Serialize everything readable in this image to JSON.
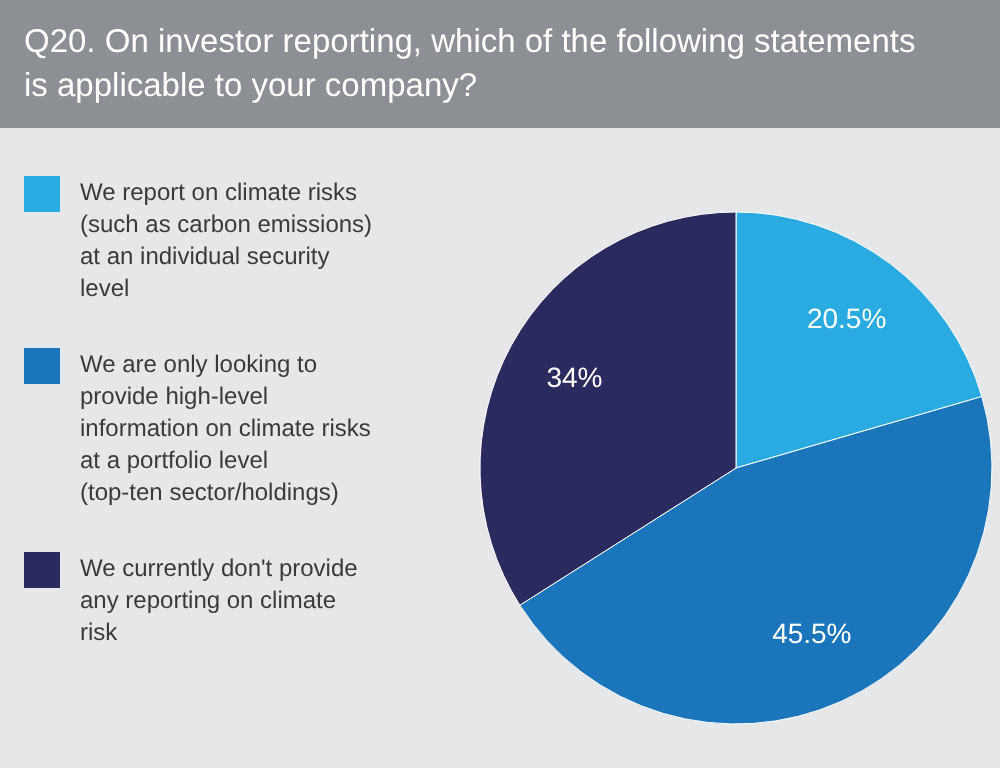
{
  "chart_data": {
    "type": "pie",
    "title": "Q20. On investor reporting, which of the following statements is applicable to your company?",
    "categories": [
      "We report on climate risks (such as carbon emissions) at an individual security level",
      "We are only looking to provide high-level information on climate risks at a portfolio level (top-ten sector/holdings)",
      "We currently don't provide any reporting on climate risk"
    ],
    "values": [
      20.5,
      45.5,
      34
    ],
    "colors": [
      "#29abe2",
      "#1b75bb",
      "#2b2a5e"
    ],
    "value_labels": [
      "20.5%",
      "45.5%",
      "34%"
    ],
    "legend": "left"
  }
}
